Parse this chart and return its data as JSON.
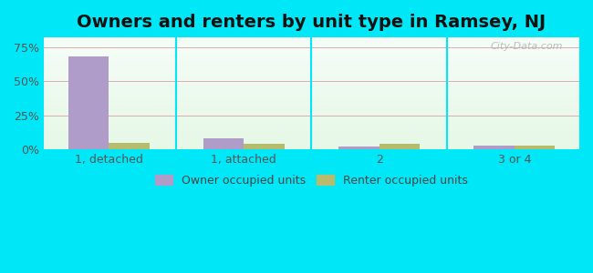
{
  "title": "Owners and renters by unit type in Ramsey, NJ",
  "categories": [
    "1, detached",
    "1, attached",
    "2",
    "3 or 4"
  ],
  "owner_values": [
    68.0,
    8.0,
    2.0,
    3.0
  ],
  "renter_values": [
    5.0,
    4.0,
    4.0,
    3.0
  ],
  "owner_color": "#b09cc8",
  "renter_color": "#b5bc6e",
  "yticks": [
    0,
    25,
    50,
    75
  ],
  "ylim": [
    0,
    82
  ],
  "title_fontsize": 14,
  "tick_fontsize": 9,
  "legend_fontsize": 9,
  "fig_bg_color": "#00e8f8",
  "watermark": "City-Data.com"
}
